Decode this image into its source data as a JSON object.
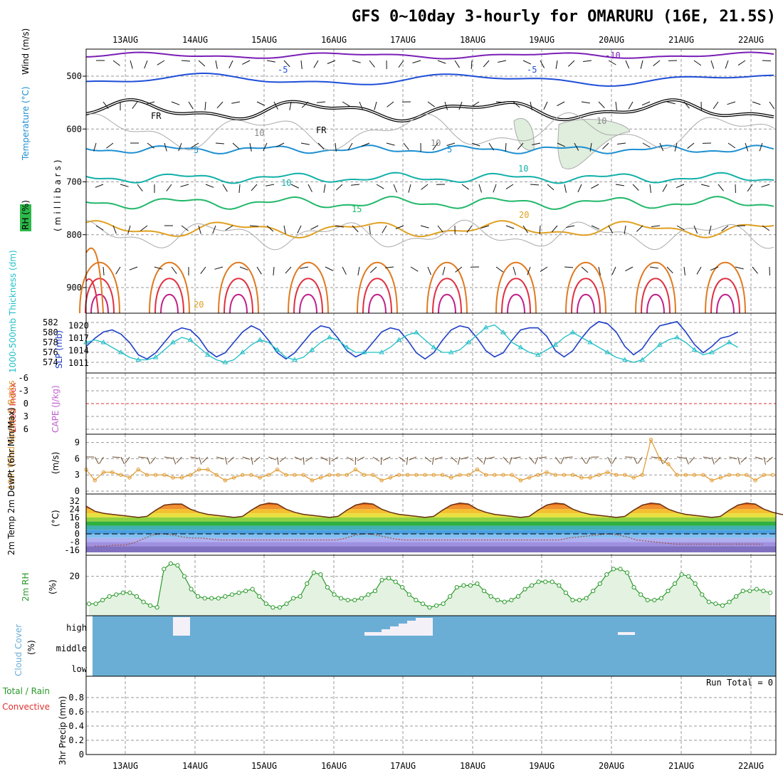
{
  "title": "GFS 0~10day 3-hourly for OMARURU (16E, 21.5S)",
  "dates": [
    "13AUG",
    "14AUG",
    "15AUG",
    "16AUG",
    "17AUG",
    "18AUG",
    "19AUG",
    "20AUG",
    "21AUG",
    "22AUG"
  ],
  "run_total": "Run Total = 0",
  "colors": {
    "grid": "#9a9a9a",
    "contour_m10": "#7a1fb5",
    "contour_m5": "#1f4fd8",
    "contour_5": "#1e90d2",
    "contour_10": "#12b0a8",
    "contour_15": "#22b86a",
    "contour_20": "#e0a020",
    "contour_25": "#e07a20",
    "contour_30": "#e03040",
    "slp": "#1f3fc8",
    "thickness": "#22c0c8",
    "wind10m": "#e09a30",
    "rh": "#2a9a2a",
    "cloud": "#6aaed6",
    "lifted": "#e03030"
  },
  "panels": {
    "upper": {
      "ylabels": [
        "Wind (m/s)",
        "Temperature (°C)",
        "RH (%)",
        "(millibars)"
      ],
      "yticks": [
        "500",
        "600",
        "700",
        "800",
        "900"
      ],
      "contour_labels": [
        "-10",
        "-5",
        "-5",
        "FR",
        "FR",
        "5",
        "5",
        "10",
        "10",
        "15",
        "20",
        "20",
        "10",
        "10",
        "10"
      ]
    },
    "slp": {
      "ylabel_left": "1000-500mb Thickness (dm)",
      "ylabel_right": "SLP (mb)",
      "left_ticks": [
        "582",
        "580",
        "578",
        "576",
        "574"
      ],
      "right_ticks": [
        "1020",
        "1017",
        "1014",
        "1011"
      ]
    },
    "cape": {
      "ylabel_left": "Lifted Index",
      "ylabel_right": "CAPE (J/kg)",
      "ticks": [
        "-6",
        "-3",
        "0",
        "3",
        "6"
      ]
    },
    "wind10": {
      "ylabel": "10m Wind Speed & Barbs",
      "unit": "(m/s)",
      "ticks": [
        "9",
        "6",
        "3",
        "0"
      ]
    },
    "temp": {
      "ylabel": "2m Temp 2m DewPt (6hr Min/Max)",
      "unit": "(°C)",
      "ticks": [
        "32",
        "24",
        "16",
        "8",
        "0",
        "-8",
        "-16"
      ]
    },
    "rh2m": {
      "ylabel": "2m RH",
      "unit": "(%)",
      "ticks": [
        "20"
      ]
    },
    "cloud": {
      "ylabel": "Cloud Cover",
      "unit": "(%)",
      "levels": [
        "high",
        "middle",
        "low"
      ]
    },
    "precip": {
      "ylabel_total": "Total / Rain",
      "ylabel_conv": "Convective",
      "ylabel": "3hr Precip (mm)",
      "ticks": [
        "0.8",
        "0.6",
        "0.4",
        "0.2",
        "0"
      ]
    }
  },
  "chart_data": [
    {
      "type": "line",
      "name": "slp",
      "x_unit": "3-hour steps from 12 Aug 12Z",
      "series": [
        {
          "name": "SLP (mb)",
          "values": [
            1015,
            1017,
            1018.5,
            1019,
            1018,
            1016,
            1013,
            1012,
            1013.5,
            1016,
            1018.5,
            1019.5,
            1019,
            1017,
            1014,
            1012.5,
            1013.5,
            1016,
            1018.5,
            1020,
            1019,
            1016.5,
            1013.5,
            1012,
            1013.5,
            1016,
            1018.5,
            1020,
            1019.5,
            1017,
            1014,
            1012.5,
            1013.5,
            1016,
            1018.5,
            1019.5,
            1019,
            1016.5,
            1013.5,
            1012,
            1013.5,
            1016.5,
            1019,
            1020,
            1019.5,
            1017,
            1014,
            1012.5,
            1013.5,
            1016.5,
            1019,
            1019.5,
            1019.5,
            1017.5,
            1014,
            1012.5,
            1014,
            1017,
            1019.5,
            1021,
            1020.5,
            1018.5,
            1015,
            1013,
            1014.5,
            1017.5,
            1020,
            1020.5,
            1021,
            1018.5,
            1015.5,
            1013.5,
            1015,
            1017,
            1017.5,
            1018.5
          ]
        },
        {
          "name": "Thickness (dm)",
          "values": [
            578,
            578.5,
            578,
            577,
            576,
            575,
            574.5,
            574.5,
            575,
            576.5,
            578,
            579,
            578.5,
            577,
            575.5,
            574.5,
            574,
            574.5,
            576,
            577.5,
            578.5,
            578,
            576.5,
            575,
            574.5,
            575,
            576.5,
            578,
            579,
            578.5,
            577,
            576,
            576,
            576,
            576,
            577,
            578.5,
            579.5,
            580,
            578.5,
            577,
            576,
            576,
            576.5,
            578,
            579.5,
            581,
            581.5,
            580,
            578,
            577,
            576,
            575.5,
            576.5,
            577.5,
            579,
            580,
            579,
            578,
            577,
            576,
            575,
            574.5,
            574,
            574.5,
            576,
            577.5,
            578.5,
            579,
            578,
            576.5,
            575.5,
            576,
            577,
            578,
            577
          ]
        }
      ],
      "ylim_slp": [
        1010,
        1022
      ],
      "ylim_thickness": [
        573,
        583
      ]
    },
    {
      "type": "line",
      "name": "wind10m",
      "ylim": [
        0,
        10
      ],
      "series": [
        {
          "name": "10m Wind Speed",
          "values": [
            4,
            2,
            3.5,
            3.5,
            3,
            2.5,
            4,
            3,
            3,
            3,
            2.5,
            2.5,
            3,
            4,
            4,
            3,
            2,
            2.5,
            3,
            3,
            2.5,
            3,
            4,
            3,
            3,
            3,
            2,
            2.5,
            3,
            3,
            3,
            4,
            3,
            3,
            2,
            2.5,
            3,
            3,
            3,
            3,
            3,
            3,
            2.5,
            3,
            3,
            4,
            3,
            3,
            3,
            3,
            2,
            2.5,
            3,
            3.5,
            3,
            3,
            3,
            2.5,
            2.5,
            3,
            3.5,
            3,
            3,
            2.5,
            3,
            9.5,
            6,
            5,
            3,
            3,
            3,
            3,
            2,
            2.5,
            3,
            3,
            3,
            2,
            3,
            3
          ]
        }
      ]
    },
    {
      "type": "area",
      "name": "temp2m",
      "ylim": [
        -18,
        36
      ],
      "series": [
        {
          "name": "2m Temp",
          "values": [
            27,
            22,
            20,
            19,
            18,
            17,
            16,
            17,
            23,
            28,
            29,
            29,
            24,
            21,
            19,
            18,
            17,
            16,
            17,
            23,
            28,
            30,
            29,
            24,
            21,
            19,
            18,
            17,
            16,
            17,
            23,
            28,
            30,
            29,
            24,
            21,
            19,
            18,
            17,
            16,
            17,
            23,
            28,
            30,
            29,
            24,
            21,
            19,
            18,
            17,
            16,
            17,
            23,
            28,
            30,
            29,
            24,
            21,
            19,
            18,
            17,
            16,
            17,
            23,
            28,
            30,
            29,
            24,
            21,
            19,
            18,
            17,
            16,
            17,
            23,
            28,
            30,
            29,
            24,
            21,
            19,
            18,
            17,
            16,
            17
          ]
        },
        {
          "name": "2m DewPt",
          "values": [
            -12,
            -12,
            -11,
            -11,
            -9,
            -5,
            -1,
            0,
            -1,
            -3,
            -4,
            -4,
            -5,
            -6,
            -6,
            -6,
            -6,
            -6,
            -6,
            -6,
            -6,
            -6,
            -6,
            -6,
            -6,
            -6,
            -4,
            -1,
            0,
            -1,
            -3,
            -5,
            -6,
            -6,
            -6,
            -6,
            -6,
            -6,
            -6,
            -6,
            -6,
            -6,
            -6,
            -6,
            -6,
            -6,
            -6,
            -6,
            -6,
            -4,
            -3,
            -2,
            -1,
            0,
            -1,
            -3,
            -6,
            -7,
            -8,
            -9,
            -10,
            -10,
            -10,
            -10,
            -10,
            -10,
            -10,
            -10,
            -10,
            -10
          ]
        }
      ]
    },
    {
      "type": "area",
      "name": "rh2m",
      "ylim": [
        0,
        30
      ],
      "series": [
        {
          "name": "2m RH",
          "values": [
            5,
            5,
            7,
            9,
            10,
            11,
            11,
            9,
            6,
            4,
            3,
            24,
            27,
            26,
            20,
            13,
            9,
            8,
            8,
            8,
            9,
            10,
            11,
            12,
            13,
            9,
            5,
            3,
            3,
            5,
            8,
            9,
            16,
            22,
            21,
            14,
            10,
            8,
            7,
            7,
            8,
            10,
            12,
            18,
            19,
            17,
            14,
            10,
            7,
            5,
            3,
            4,
            5,
            9,
            14,
            15,
            15,
            16,
            12,
            9,
            7,
            6,
            7,
            9,
            13,
            15,
            17,
            17,
            17,
            15,
            11,
            7,
            7,
            8,
            12,
            16,
            21,
            24,
            24,
            22,
            14,
            10,
            7,
            7,
            8,
            12,
            16,
            21,
            20,
            16,
            10,
            6,
            5,
            4,
            6,
            9,
            12,
            12,
            13,
            12,
            11
          ]
        }
      ]
    },
    {
      "type": "bar",
      "name": "cloud_cover",
      "categories": [
        "high",
        "middle",
        "low"
      ],
      "note_levels": "cloud cover present mostly at high level on 13-14AUG, 16-17AUG, 20AUG"
    },
    {
      "type": "bar",
      "name": "precip",
      "ylim": [
        0,
        1
      ],
      "values": []
    }
  ]
}
